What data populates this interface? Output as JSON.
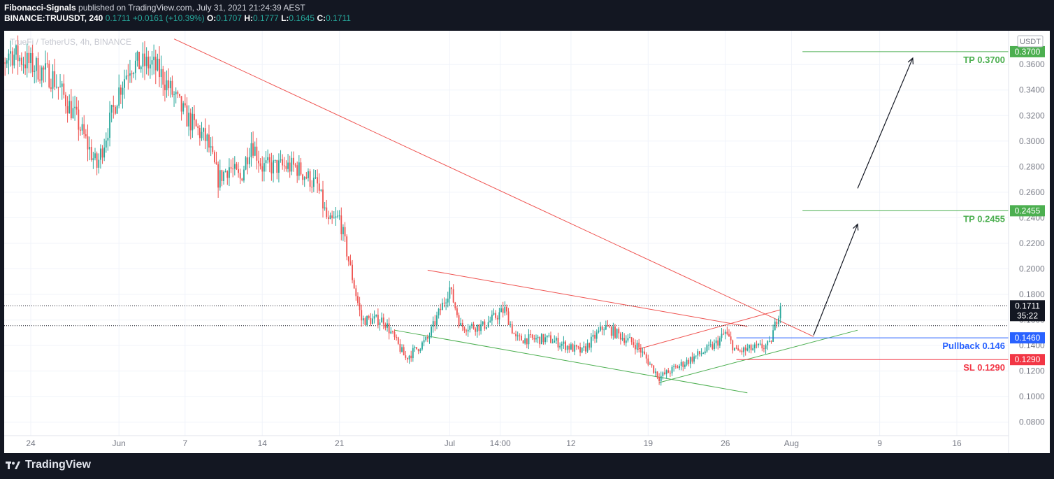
{
  "header": {
    "author": "Fibonacci-Signals",
    "published_text": "published on TradingView.com, July 31, 2021 21:24:39 AEST",
    "symbol": "BINANCE:TRUUSDT, 240",
    "last": "0.1711",
    "change": "+0.0161 (+10.39%)",
    "ohlc": [
      {
        "label": "O:",
        "value": "0.1707"
      },
      {
        "label": "H:",
        "value": "0.1777"
      },
      {
        "label": "L:",
        "value": "0.1645"
      },
      {
        "label": "C:",
        "value": "0.1711"
      }
    ]
  },
  "chart_watermark": "TrueFi / TetherUS, 4h, BINANCE",
  "footer": {
    "logo_text": "TradingView"
  },
  "colors": {
    "up": "#26a69a",
    "down": "#ef5350",
    "green_line": "#4caf50",
    "red_line": "#ef5350",
    "blue_line": "#2962ff",
    "sl_label": "#f23645",
    "tp_label": "#4caf50",
    "pullback_label": "#2962ff"
  },
  "chart_data": {
    "type": "candlestick",
    "title": "TrueFi / TetherUS, 4h, BINANCE",
    "currency": "USDT",
    "ylim": [
      0.07,
      0.382
    ],
    "y_ticks": [
      "0.3600",
      "0.3400",
      "0.3200",
      "0.3000",
      "0.2800",
      "0.2600",
      "0.2400",
      "0.2200",
      "0.2000",
      "0.1800",
      "0.1600",
      "0.1400",
      "0.1200",
      "0.1000",
      "0.0800"
    ],
    "x_ticks": [
      {
        "label": "24",
        "date": "2021-05-24"
      },
      {
        "label": "Jun",
        "date": "2021-06-01"
      },
      {
        "label": "7",
        "date": "2021-06-07"
      },
      {
        "label": "14",
        "date": "2021-06-14"
      },
      {
        "label": "21",
        "date": "2021-06-21"
      },
      {
        "label": "Jul",
        "date": "2021-07-01"
      },
      {
        "label": "14:00",
        "date": "2021-07-05 14:00"
      },
      {
        "label": "12",
        "date": "2021-07-12"
      },
      {
        "label": "19",
        "date": "2021-07-19"
      },
      {
        "label": "26",
        "date": "2021-07-26"
      },
      {
        "label": "Aug",
        "date": "2021-08-01"
      },
      {
        "label": "9",
        "date": "2021-08-09"
      },
      {
        "label": "16",
        "date": "2021-08-16"
      }
    ],
    "price_path": [
      {
        "date": "2021-05-20",
        "close": 0.31
      },
      {
        "date": "2021-05-21",
        "close": 0.35
      },
      {
        "date": "2021-05-22",
        "close": 0.37
      },
      {
        "date": "2021-05-24",
        "close": 0.36
      },
      {
        "date": "2021-05-26",
        "close": 0.35
      },
      {
        "date": "2021-05-28",
        "close": 0.32
      },
      {
        "date": "2021-05-30",
        "close": 0.28
      },
      {
        "date": "2021-06-01",
        "close": 0.34
      },
      {
        "date": "2021-06-02",
        "close": 0.36
      },
      {
        "date": "2021-06-04",
        "close": 0.36
      },
      {
        "date": "2021-06-05",
        "close": 0.35
      },
      {
        "date": "2021-06-07",
        "close": 0.32
      },
      {
        "date": "2021-06-09",
        "close": 0.3
      },
      {
        "date": "2021-06-10",
        "close": 0.27
      },
      {
        "date": "2021-06-11",
        "close": 0.28
      },
      {
        "date": "2021-06-12",
        "close": 0.27
      },
      {
        "date": "2021-06-13",
        "close": 0.3
      },
      {
        "date": "2021-06-14",
        "close": 0.28
      },
      {
        "date": "2021-06-17",
        "close": 0.28
      },
      {
        "date": "2021-06-19",
        "close": 0.265
      },
      {
        "date": "2021-06-20",
        "close": 0.235
      },
      {
        "date": "2021-06-21",
        "close": 0.24
      },
      {
        "date": "2021-06-22",
        "close": 0.2
      },
      {
        "date": "2021-06-23",
        "close": 0.16
      },
      {
        "date": "2021-06-25",
        "close": 0.16
      },
      {
        "date": "2021-06-27",
        "close": 0.13
      },
      {
        "date": "2021-06-29",
        "close": 0.145
      },
      {
        "date": "2021-07-01",
        "close": 0.185
      },
      {
        "date": "2021-07-02",
        "close": 0.155
      },
      {
        "date": "2021-07-04",
        "close": 0.155
      },
      {
        "date": "2021-07-06",
        "close": 0.168
      },
      {
        "date": "2021-07-07",
        "close": 0.145
      },
      {
        "date": "2021-07-10",
        "close": 0.145
      },
      {
        "date": "2021-07-13",
        "close": 0.135
      },
      {
        "date": "2021-07-15",
        "close": 0.155
      },
      {
        "date": "2021-07-18",
        "close": 0.14
      },
      {
        "date": "2021-07-20",
        "close": 0.115
      },
      {
        "date": "2021-07-22",
        "close": 0.125
      },
      {
        "date": "2021-07-25",
        "close": 0.14
      },
      {
        "date": "2021-07-26",
        "close": 0.15
      },
      {
        "date": "2021-07-27",
        "close": 0.135
      },
      {
        "date": "2021-07-30",
        "close": 0.14
      },
      {
        "date": "2021-07-31",
        "close": 0.1711
      }
    ],
    "horizontal_levels": [
      {
        "label": "TP 0.3700",
        "axis_label": "0.3700",
        "value": 0.37,
        "color": "#4caf50"
      },
      {
        "label": "TP 0.2455",
        "axis_label": "0.2455",
        "value": 0.2455,
        "color": "#4caf50"
      },
      {
        "label": "Pullback 0.146",
        "axis_label": "0.1460",
        "value": 0.146,
        "color": "#2962ff"
      },
      {
        "label": "SL 0.1290",
        "axis_label": "0.1290",
        "value": 0.129,
        "color": "#f23645"
      }
    ],
    "current_price": {
      "value": 0.1711,
      "label": "0.1711",
      "countdown": "35:22"
    },
    "trendlines": [
      {
        "name": "downtrend",
        "color": "#ef5350",
        "from": {
          "date": "2021-06-06",
          "price": 0.38
        },
        "to": {
          "date": "2021-08-03",
          "price": 0.147
        }
      },
      {
        "name": "wedge-top",
        "color": "#ef5350",
        "from": {
          "date": "2021-06-29",
          "price": 0.199
        },
        "to": {
          "date": "2021-07-28",
          "price": 0.155
        }
      },
      {
        "name": "wedge-bottom",
        "color": "#4caf50",
        "from": {
          "date": "2021-06-26",
          "price": 0.152
        },
        "to": {
          "date": "2021-07-28",
          "price": 0.103
        }
      },
      {
        "name": "channel-top",
        "color": "#ef5350",
        "from": {
          "date": "2021-07-18",
          "price": 0.137
        },
        "to": {
          "date": "2021-07-31",
          "price": 0.168
        }
      },
      {
        "name": "channel-bottom",
        "color": "#4caf50",
        "from": {
          "date": "2021-07-20",
          "price": 0.111
        },
        "to": {
          "date": "2021-08-07",
          "price": 0.152
        }
      }
    ],
    "arrows": [
      {
        "from": {
          "date": "2021-08-03",
          "price": 0.148
        },
        "to": {
          "date": "2021-08-07",
          "price": 0.235
        }
      },
      {
        "from": {
          "date": "2021-08-07",
          "price": 0.263
        },
        "to": {
          "date": "2021-08-12",
          "price": 0.365
        }
      }
    ]
  }
}
